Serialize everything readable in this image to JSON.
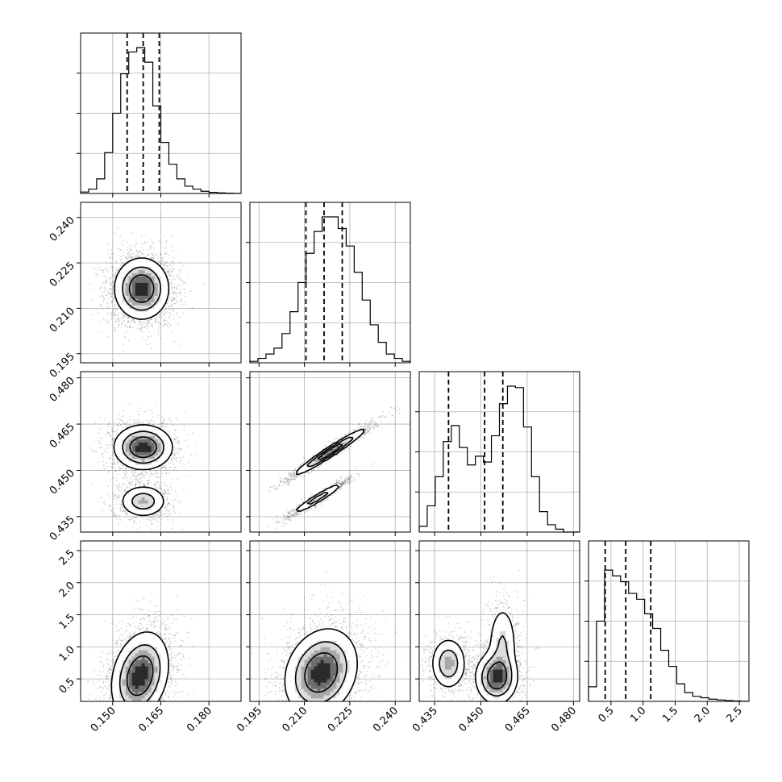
{
  "chart_data": {
    "type": "corner",
    "grid": true,
    "parameters": [
      {
        "range": [
          0.14,
          0.19
        ],
        "ticks": [
          0.15,
          0.165,
          0.18
        ],
        "tick_labels": [
          "0.150",
          "0.165",
          "0.180"
        ],
        "quantiles": [
          0.1545,
          0.1595,
          0.1645
        ],
        "histogram": [
          0.01,
          0.03,
          0.1,
          0.28,
          0.55,
          0.82,
          0.97,
          1.0,
          0.9,
          0.6,
          0.35,
          0.2,
          0.1,
          0.05,
          0.03,
          0.015,
          0.008,
          0.004,
          0.002,
          0.001
        ]
      },
      {
        "range": [
          0.192,
          0.245
        ],
        "ticks": [
          0.195,
          0.21,
          0.225,
          0.24
        ],
        "tick_labels": [
          "0.195",
          "0.210",
          "0.225",
          "0.240"
        ],
        "quantiles": [
          0.2105,
          0.2165,
          0.2225
        ],
        "histogram": [
          0.01,
          0.03,
          0.06,
          0.1,
          0.2,
          0.35,
          0.55,
          0.75,
          0.9,
          1.0,
          1.0,
          0.92,
          0.8,
          0.62,
          0.43,
          0.26,
          0.14,
          0.06,
          0.03,
          0.01
        ]
      },
      {
        "range": [
          0.43,
          0.482
        ],
        "ticks": [
          0.435,
          0.45,
          0.465,
          0.48
        ],
        "tick_labels": [
          "0.435",
          "0.450",
          "0.465",
          "0.480"
        ],
        "quantiles": [
          0.4395,
          0.4512,
          0.4571
        ],
        "histogram": [
          0.04,
          0.18,
          0.38,
          0.62,
          0.73,
          0.58,
          0.46,
          0.52,
          0.48,
          0.66,
          0.88,
          1.0,
          0.99,
          0.72,
          0.38,
          0.14,
          0.05,
          0.02,
          0.0,
          0.0
        ]
      },
      {
        "range": [
          0.15,
          2.65
        ],
        "ticks": [
          0.5,
          1.0,
          1.5,
          2.0,
          2.5
        ],
        "tick_labels": [
          "0.5",
          "1.0",
          "1.5",
          "2.0",
          "2.5"
        ],
        "quantiles": [
          0.41,
          0.73,
          1.12
        ],
        "histogram": [
          0.1,
          0.55,
          0.9,
          0.86,
          0.82,
          0.74,
          0.7,
          0.6,
          0.5,
          0.35,
          0.24,
          0.12,
          0.06,
          0.035,
          0.025,
          0.015,
          0.01,
          0.006,
          0.003,
          0.001
        ]
      }
    ],
    "pairs": [
      {
        "row": 1,
        "col": 0,
        "blobs": [
          {
            "cx": 0.159,
            "cy": 0.2165,
            "sx": 0.0041,
            "sy": 0.0049,
            "rho": 0.0,
            "w": 1.0
          }
        ]
      },
      {
        "row": 2,
        "col": 0,
        "blobs": [
          {
            "cx": 0.1595,
            "cy": 0.4575,
            "sx": 0.0044,
            "sy": 0.0035,
            "rho": 0.0,
            "w": 1.0
          },
          {
            "cx": 0.1595,
            "cy": 0.44,
            "sx": 0.0036,
            "sy": 0.0026,
            "rho": 0.0,
            "w": 0.55
          }
        ]
      },
      {
        "row": 2,
        "col": 1,
        "blobs": [
          {
            "cx": 0.2185,
            "cy": 0.456,
            "sx": 0.0056,
            "sy": 0.0036,
            "rho": 0.97,
            "w": 1.0
          },
          {
            "cx": 0.2145,
            "cy": 0.441,
            "sx": 0.0043,
            "sy": 0.0026,
            "rho": 0.96,
            "w": 0.55
          }
        ]
      },
      {
        "row": 3,
        "col": 0,
        "blobs": [
          {
            "cx": 0.1585,
            "cy": 0.55,
            "sx": 0.0043,
            "sy": 0.33,
            "rho": 0.25,
            "w": 1.0
          }
        ]
      },
      {
        "row": 3,
        "col": 1,
        "blobs": [
          {
            "cx": 0.2155,
            "cy": 0.6,
            "sx": 0.0058,
            "sy": 0.33,
            "rho": 0.2,
            "w": 1.0
          }
        ]
      },
      {
        "row": 3,
        "col": 2,
        "blobs": [
          {
            "cx": 0.4395,
            "cy": 0.74,
            "sx": 0.0028,
            "sy": 0.2,
            "rho": 0.0,
            "w": 0.65
          },
          {
            "cx": 0.455,
            "cy": 0.52,
            "sx": 0.0033,
            "sy": 0.2,
            "rho": 0.0,
            "w": 1.0
          },
          {
            "cx": 0.457,
            "cy": 1.05,
            "sx": 0.0024,
            "sy": 0.32,
            "rho": 0.0,
            "w": 0.4
          }
        ]
      }
    ]
  }
}
